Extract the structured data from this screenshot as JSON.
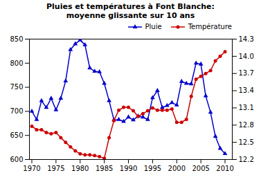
{
  "chart_data": {
    "type": "line",
    "title": "Pluies et températures à Font Blanche:\nmoyenne glissante sur 10 ans",
    "x": [
      1970,
      1971,
      1972,
      1973,
      1974,
      1975,
      1976,
      1977,
      1978,
      1979,
      1980,
      1981,
      1982,
      1983,
      1984,
      1985,
      1986,
      1987,
      1988,
      1989,
      1990,
      1991,
      1992,
      1993,
      1994,
      1995,
      1996,
      1997,
      1998,
      1999,
      2000,
      2001,
      2002,
      2003,
      2004,
      2005,
      2006,
      2007,
      2008,
      2009,
      2010
    ],
    "xlim": [
      1969.5,
      2011.5
    ],
    "xticks": [
      1970,
      1975,
      1980,
      1985,
      1990,
      1995,
      2000,
      2005,
      2010
    ],
    "ylim": [
      600,
      850
    ],
    "yticks": [
      600,
      650,
      700,
      750,
      800,
      850
    ],
    "y2lim": [
      12.2,
      14.3
    ],
    "y2ticks": [
      12.2,
      12.5,
      12.8,
      13.1,
      13.4,
      13.7,
      {
        "value": 14.0,
        "label": "14.0"
      },
      14.3
    ],
    "legend": "upper right",
    "series": [
      {
        "name": "Pluie",
        "color": "#0000cc",
        "marker": "triangle",
        "values": [
          700,
          683,
          722,
          708,
          727,
          703,
          727,
          763,
          828,
          840,
          848,
          838,
          790,
          783,
          782,
          758,
          722,
          682,
          683,
          679,
          688,
          682,
          690,
          688,
          683,
          728,
          743,
          708,
          712,
          718,
          713,
          762,
          758,
          757,
          800,
          798,
          732,
          698,
          648,
          623,
          612
        ]
      },
      {
        "name": "Température",
        "color": "#cc0000",
        "marker": "circle",
        "axis": "y2",
        "values": [
          12.78,
          12.72,
          12.72,
          12.67,
          12.65,
          12.67,
          12.58,
          12.5,
          12.42,
          12.35,
          12.3,
          12.28,
          12.28,
          12.27,
          12.25,
          12.22,
          12.58,
          12.88,
          13.06,
          13.11,
          13.11,
          13.05,
          12.95,
          13.0,
          13.05,
          13.1,
          13.06,
          13.06,
          13.06,
          13.08,
          12.85,
          12.85,
          12.9,
          13.3,
          13.6,
          13.65,
          13.7,
          13.75,
          13.92,
          14.0,
          14.08
        ]
      }
    ]
  }
}
